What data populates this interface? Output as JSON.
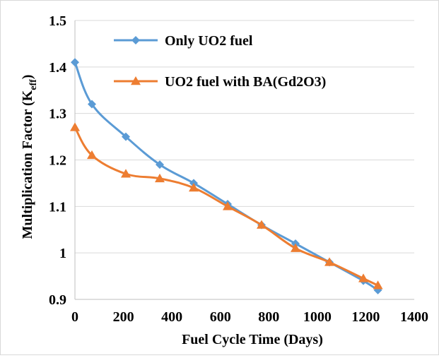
{
  "chart_data": {
    "type": "line",
    "xlabel": "Fuel Cycle Time (Days)",
    "ylabel_main": "Multiplication Factor (K",
    "ylabel_sub": "eff",
    "ylabel_close": ")",
    "xlim": [
      0,
      1400
    ],
    "ylim": [
      0.9,
      1.5
    ],
    "x_ticks": [
      0,
      200,
      400,
      600,
      800,
      1000,
      1200,
      1400
    ],
    "x_tick_labels": [
      "0",
      "200",
      "400",
      "600",
      "800",
      "1000",
      "1200",
      "1400"
    ],
    "y_ticks": [
      0.9,
      1.0,
      1.1,
      1.2,
      1.3,
      1.4,
      1.5
    ],
    "y_tick_labels": [
      "0.9",
      "1",
      "1.1",
      "1.2",
      "1.3",
      "1.4",
      "1.5"
    ],
    "grid": "horizontal",
    "legend_position": "top-right",
    "series": [
      {
        "name": "Only UO2 fuel",
        "color": "#5B9BD5",
        "marker": "diamond",
        "x": [
          0,
          70,
          210,
          350,
          490,
          630,
          770,
          910,
          1050,
          1190,
          1250
        ],
        "y": [
          1.41,
          1.32,
          1.25,
          1.19,
          1.15,
          1.105,
          1.06,
          1.02,
          0.98,
          0.94,
          0.92
        ]
      },
      {
        "name": "UO2  fuel with BA(Gd2O3)",
        "color": "#ED7D31",
        "marker": "triangle",
        "x": [
          0,
          70,
          210,
          350,
          490,
          630,
          770,
          910,
          1050,
          1190,
          1250
        ],
        "y": [
          1.27,
          1.21,
          1.17,
          1.16,
          1.14,
          1.1,
          1.06,
          1.01,
          0.98,
          0.945,
          0.93
        ]
      }
    ]
  }
}
